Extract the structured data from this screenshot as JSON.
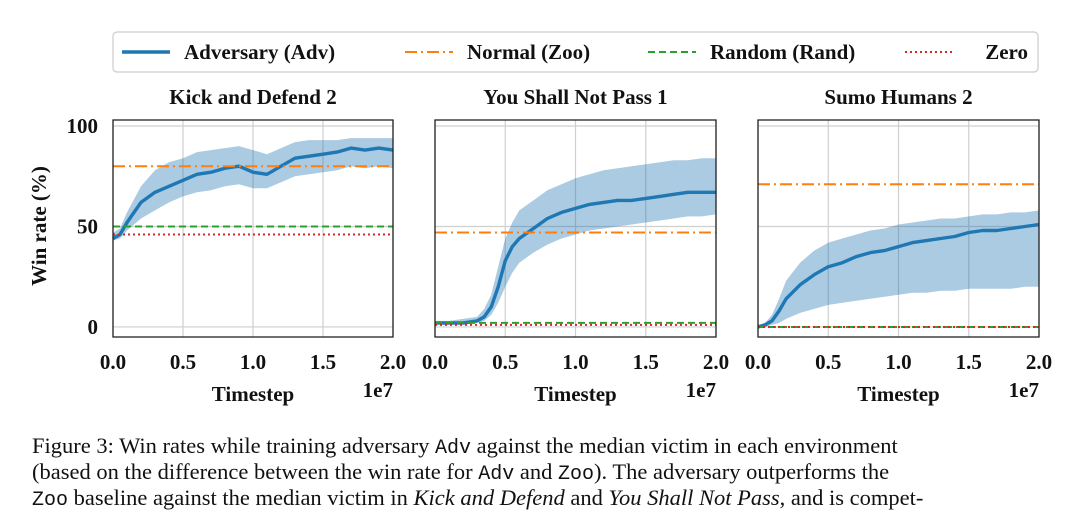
{
  "legend": {
    "items": [
      {
        "label": "Adversary (Adv)",
        "color": "#1f77b4",
        "style": "solid"
      },
      {
        "label": "Normal (Zoo)",
        "color": "#ff7f0e",
        "style": "dashdot"
      },
      {
        "label": "Random (Rand)",
        "color": "#2ca02c",
        "style": "dashed"
      },
      {
        "label": "Zero",
        "color": "#d62728",
        "style": "dotted"
      }
    ]
  },
  "ylabel": "Win rate (%)",
  "xlabel": "Timestep",
  "x_offset_label": "1e7",
  "chart_data": [
    {
      "type": "line",
      "title": "Kick and Defend 2",
      "xlim": [
        0,
        2.0
      ],
      "ylim": [
        -5,
        103
      ],
      "xticks": [
        "0.0",
        "0.5",
        "1.0",
        "1.5",
        "2.0"
      ],
      "yticks": [
        "0",
        "50",
        "100"
      ],
      "show_yticks": true,
      "grid": true,
      "series": [
        {
          "name": "Adversary (Adv)",
          "x": [
            0,
            0.05,
            0.1,
            0.2,
            0.3,
            0.4,
            0.5,
            0.6,
            0.7,
            0.8,
            0.9,
            1.0,
            1.1,
            1.2,
            1.3,
            1.4,
            1.5,
            1.6,
            1.7,
            1.8,
            1.9,
            2.0
          ],
          "y": [
            44,
            46,
            52,
            62,
            67,
            70,
            73,
            76,
            77,
            79,
            80,
            77,
            76,
            80,
            84,
            85,
            86,
            87,
            89,
            88,
            89,
            88
          ],
          "lower": [
            43,
            44,
            48,
            54,
            58,
            62,
            65,
            67,
            68,
            70,
            71,
            69,
            69,
            72,
            75,
            76,
            77,
            78,
            80,
            79,
            80,
            79
          ],
          "upper": [
            47,
            49,
            57,
            70,
            78,
            82,
            84,
            87,
            88,
            89,
            90,
            88,
            86,
            89,
            92,
            93,
            93,
            93,
            94,
            94,
            94,
            94
          ]
        },
        {
          "name": "Normal (Zoo)",
          "x": [
            0,
            2.0
          ],
          "y": [
            80,
            80
          ]
        },
        {
          "name": "Random (Rand)",
          "x": [
            0,
            2.0
          ],
          "y": [
            50,
            50
          ]
        },
        {
          "name": "Zero",
          "x": [
            0,
            2.0
          ],
          "y": [
            46,
            46
          ]
        }
      ]
    },
    {
      "type": "line",
      "title": "You Shall Not Pass 1",
      "xlim": [
        0,
        2.0
      ],
      "ylim": [
        -5,
        103
      ],
      "xticks": [
        "0.0",
        "0.5",
        "1.0",
        "1.5",
        "2.0"
      ],
      "yticks": [
        "0",
        "50",
        "100"
      ],
      "show_yticks": false,
      "grid": true,
      "series": [
        {
          "name": "Adversary (Adv)",
          "x": [
            0,
            0.1,
            0.2,
            0.3,
            0.35,
            0.4,
            0.45,
            0.5,
            0.55,
            0.6,
            0.7,
            0.8,
            0.9,
            1.0,
            1.1,
            1.2,
            1.3,
            1.4,
            1.5,
            1.6,
            1.7,
            1.8,
            1.9,
            2.0
          ],
          "y": [
            2,
            2,
            2,
            3,
            5,
            10,
            20,
            33,
            40,
            44,
            49,
            54,
            57,
            59,
            61,
            62,
            63,
            63,
            64,
            65,
            66,
            67,
            67,
            67
          ],
          "lower": [
            1,
            1,
            1,
            2,
            3,
            6,
            12,
            20,
            27,
            32,
            37,
            41,
            44,
            46,
            48,
            49,
            50,
            51,
            52,
            53,
            54,
            55,
            55,
            56
          ],
          "upper": [
            3,
            3,
            4,
            5,
            9,
            16,
            30,
            44,
            52,
            58,
            63,
            68,
            71,
            74,
            76,
            78,
            79,
            80,
            81,
            82,
            83,
            83,
            84,
            84
          ]
        },
        {
          "name": "Normal (Zoo)",
          "x": [
            0,
            2.0
          ],
          "y": [
            47,
            47
          ]
        },
        {
          "name": "Random (Rand)",
          "x": [
            0,
            2.0
          ],
          "y": [
            2,
            2
          ]
        },
        {
          "name": "Zero",
          "x": [
            0,
            2.0
          ],
          "y": [
            1,
            1
          ]
        }
      ]
    },
    {
      "type": "line",
      "title": "Sumo Humans 2",
      "xlim": [
        0,
        2.0
      ],
      "ylim": [
        -5,
        103
      ],
      "xticks": [
        "0.0",
        "0.5",
        "1.0",
        "1.5",
        "2.0"
      ],
      "yticks": [
        "0",
        "50",
        "100"
      ],
      "show_yticks": false,
      "grid": true,
      "series": [
        {
          "name": "Adversary (Adv)",
          "x": [
            0,
            0.05,
            0.1,
            0.15,
            0.2,
            0.3,
            0.4,
            0.5,
            0.6,
            0.7,
            0.8,
            0.9,
            1.0,
            1.1,
            1.2,
            1.3,
            1.4,
            1.5,
            1.6,
            1.7,
            1.8,
            1.9,
            2.0
          ],
          "y": [
            0,
            1,
            3,
            8,
            14,
            21,
            26,
            30,
            32,
            35,
            37,
            38,
            40,
            42,
            43,
            44,
            45,
            47,
            48,
            48,
            49,
            50,
            51
          ],
          "lower": [
            0,
            0,
            1,
            2,
            4,
            7,
            9,
            11,
            12,
            13,
            14,
            15,
            16,
            17,
            17,
            18,
            18,
            19,
            19,
            19,
            19,
            20,
            20
          ],
          "upper": [
            1,
            2,
            6,
            14,
            23,
            32,
            38,
            42,
            44,
            46,
            48,
            49,
            51,
            52,
            53,
            54,
            54,
            55,
            56,
            56,
            57,
            57,
            58
          ]
        },
        {
          "name": "Normal (Zoo)",
          "x": [
            0,
            2.0
          ],
          "y": [
            71,
            71
          ]
        },
        {
          "name": "Random (Rand)",
          "x": [
            0,
            2.0
          ],
          "y": [
            0,
            0
          ]
        },
        {
          "name": "Zero",
          "x": [
            0,
            2.0
          ],
          "y": [
            0,
            0
          ]
        }
      ]
    }
  ],
  "caption": {
    "line1": [
      {
        "t": "Figure 3: Win rates while training adversary ",
        "s": ""
      },
      {
        "t": "Adv",
        "s": "mono"
      },
      {
        "t": " against the median victim in each environment",
        "s": ""
      }
    ],
    "line2": [
      {
        "t": "(based on the difference between the win rate for ",
        "s": ""
      },
      {
        "t": "Adv",
        "s": "mono"
      },
      {
        "t": " and ",
        "s": ""
      },
      {
        "t": "Zoo",
        "s": "mono"
      },
      {
        "t": "). The adversary outperforms the",
        "s": ""
      }
    ],
    "line3": [
      {
        "t": "Zoo",
        "s": "mono"
      },
      {
        "t": " baseline against the median victim in ",
        "s": ""
      },
      {
        "t": "Kick and Defend",
        "s": "it"
      },
      {
        "t": " and ",
        "s": ""
      },
      {
        "t": "You Shall Not Pass",
        "s": "it"
      },
      {
        "t": ", and is compet-",
        "s": ""
      }
    ]
  }
}
